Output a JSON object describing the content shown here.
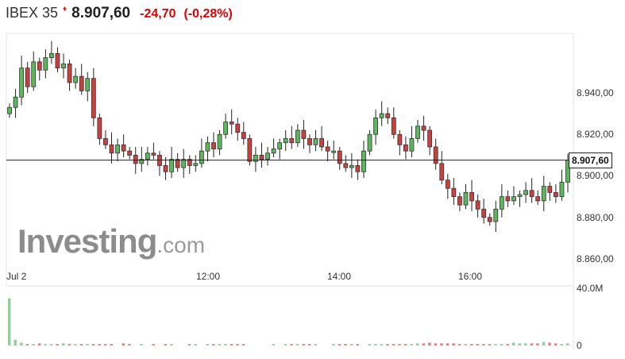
{
  "header": {
    "name": "IBEX 35",
    "direction_icon": "down-arrow",
    "last": "8.907,60",
    "change": "-24,70",
    "change_pct": "(-0,28%)"
  },
  "watermark": {
    "brand": "Investing",
    "suffix": ".com"
  },
  "colors": {
    "up": "#5cb85c",
    "down": "#c9403f",
    "vol_up": "#8fd19e",
    "vol_down": "#e08080",
    "change": "#e00000"
  },
  "chart_data": {
    "type": "candlestick",
    "y_ticks": [
      "8.940,00",
      "8.920,00",
      "8.900,00",
      "8.880,00",
      "8.860,00"
    ],
    "y_tick_values": [
      8940,
      8920,
      8900,
      8880,
      8860
    ],
    "x_ticks": [
      "Jul 2",
      "12:00",
      "14:00",
      "16:00"
    ],
    "ylim": [
      8852,
      8972
    ],
    "last_price_label": "8.907,60",
    "last_price": 8907.6,
    "volume_ticks": [
      "40.0M",
      "0"
    ],
    "volume_ylim": [
      0,
      40
    ],
    "closes": [
      8933,
      8938,
      8952,
      8943,
      8955,
      8951,
      8957,
      8959,
      8952,
      8954,
      8945,
      8948,
      8941,
      8947,
      8928,
      8918,
      8915,
      8911,
      8915,
      8912,
      8910,
      8906,
      8908,
      8911,
      8910,
      8905,
      8902,
      8908,
      8904,
      8908,
      8905,
      8906,
      8912,
      8916,
      8913,
      8920,
      8926,
      8925,
      8921,
      8918,
      8907,
      8910,
      8908,
      8911,
      8913,
      8916,
      8918,
      8916,
      8922,
      8918,
      8915,
      8918,
      8914,
      8912,
      8912,
      8906,
      8904,
      8905,
      8902,
      8912,
      8920,
      8928,
      8930,
      8928,
      8920,
      8915,
      8912,
      8918,
      8924,
      8922,
      8914,
      8906,
      8898,
      8894,
      8890,
      8886,
      8892,
      8888,
      8884,
      8880,
      8878,
      8884,
      8890,
      8888,
      8890,
      8891,
      8893,
      8890,
      8888,
      8895,
      8892,
      8890,
      8897,
      8907.6
    ],
    "first_open": 8930,
    "volume_millions": [
      33,
      4,
      2,
      1,
      1,
      1.5,
      1,
      1,
      1,
      1.5,
      1,
      1,
      1,
      1,
      1,
      1,
      1,
      1,
      0,
      1.5,
      1,
      0,
      1,
      0,
      1,
      0,
      1,
      1,
      0,
      0,
      1,
      1,
      0,
      1,
      1,
      1,
      1,
      1,
      1,
      1,
      0,
      0,
      0,
      0,
      1,
      0,
      1,
      1,
      1,
      1,
      1,
      1,
      0,
      0,
      1,
      1,
      1,
      1,
      1,
      0,
      1,
      1,
      1,
      1,
      1,
      1,
      1,
      1,
      1.5,
      1.5,
      2,
      1.5,
      1.5,
      1.5,
      1.5,
      1,
      1,
      1,
      1,
      1,
      1,
      1,
      1,
      1,
      2,
      1.5,
      1.5,
      1.5,
      1.5,
      2.5,
      2,
      1.5,
      1,
      1.5
    ]
  }
}
